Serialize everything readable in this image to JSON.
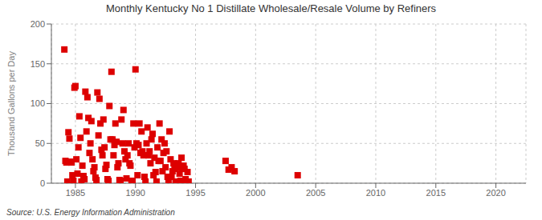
{
  "chart_data": {
    "type": "scatter",
    "title": "Monthly Kentucky No 1 Distillate Wholesale/Resale Volume by Refiners",
    "ylabel": "Thousand Gallons per Day",
    "annotations": [
      "Source: U.S. Energy Information Administration"
    ],
    "color": "#dd0000",
    "marker": "square",
    "grid": true,
    "xlim": [
      1983.0,
      2022.5
    ],
    "ylim": [
      0,
      200
    ],
    "xticks": [
      1985,
      1990,
      1995,
      2000,
      2005,
      2010,
      2015,
      2020
    ],
    "yticks": [
      0,
      50,
      100,
      150,
      200
    ],
    "x": [
      1984.08,
      1984.17,
      1984.25,
      1984.33,
      1984.42,
      1984.5,
      1984.58,
      1984.67,
      1984.75,
      1984.83,
      1984.92,
      1985.0,
      1985.08,
      1985.17,
      1985.25,
      1985.33,
      1985.42,
      1985.5,
      1985.58,
      1985.67,
      1985.75,
      1985.83,
      1985.92,
      1986.0,
      1986.08,
      1986.17,
      1986.25,
      1986.33,
      1986.42,
      1986.5,
      1986.58,
      1986.67,
      1986.75,
      1986.83,
      1986.92,
      1987.0,
      1987.08,
      1987.17,
      1987.25,
      1987.33,
      1987.42,
      1987.5,
      1987.58,
      1987.67,
      1987.75,
      1987.83,
      1987.92,
      1988.0,
      1988.08,
      1988.17,
      1988.25,
      1988.33,
      1988.42,
      1988.5,
      1988.58,
      1988.67,
      1988.75,
      1988.83,
      1988.92,
      1989.0,
      1989.08,
      1989.17,
      1989.25,
      1989.33,
      1989.42,
      1989.5,
      1989.58,
      1989.67,
      1989.75,
      1989.83,
      1989.92,
      1990.0,
      1990.08,
      1990.17,
      1990.25,
      1990.33,
      1990.42,
      1990.5,
      1990.58,
      1990.67,
      1990.75,
      1990.83,
      1990.92,
      1991.0,
      1991.08,
      1991.17,
      1991.25,
      1991.33,
      1991.42,
      1991.5,
      1991.58,
      1991.67,
      1991.75,
      1991.83,
      1991.92,
      1992.0,
      1992.08,
      1992.17,
      1992.25,
      1992.33,
      1992.42,
      1992.5,
      1992.58,
      1992.67,
      1992.75,
      1992.83,
      1992.92,
      1993.0,
      1993.08,
      1993.17,
      1993.25,
      1993.33,
      1993.42,
      1993.5,
      1993.58,
      1993.67,
      1993.75,
      1993.83,
      1993.92,
      1994.0,
      1994.08,
      1994.17,
      1994.25,
      1994.33,
      1994.42,
      1997.5,
      1997.75,
      1998.0,
      1998.25,
      2003.5
    ],
    "values": [
      168,
      28,
      26,
      2,
      64,
      56,
      27,
      26,
      10,
      3,
      120,
      122,
      30,
      12,
      45,
      84,
      57,
      2,
      22,
      9,
      5,
      115,
      65,
      108,
      82,
      38,
      50,
      78,
      30,
      15,
      20,
      7,
      4,
      114,
      60,
      106,
      75,
      42,
      35,
      80,
      45,
      18,
      23,
      5,
      3,
      97,
      55,
      140,
      55,
      35,
      48,
      75,
      52,
      20,
      25,
      4,
      3,
      80,
      50,
      92,
      40,
      30,
      6,
      35,
      50,
      25,
      22,
      3,
      2,
      75,
      45,
      143,
      50,
      10,
      48,
      75,
      38,
      65,
      40,
      35,
      8,
      2,
      50,
      70,
      35,
      40,
      25,
      55,
      62,
      10,
      32,
      14,
      2,
      45,
      28,
      75,
      28,
      55,
      15,
      38,
      50,
      20,
      40,
      8,
      2,
      65,
      30,
      8,
      15,
      25,
      18,
      2,
      2,
      20,
      25,
      12,
      3,
      32,
      18,
      22,
      18,
      5,
      2,
      14,
      2,
      28,
      17,
      20,
      15,
      10
    ]
  }
}
